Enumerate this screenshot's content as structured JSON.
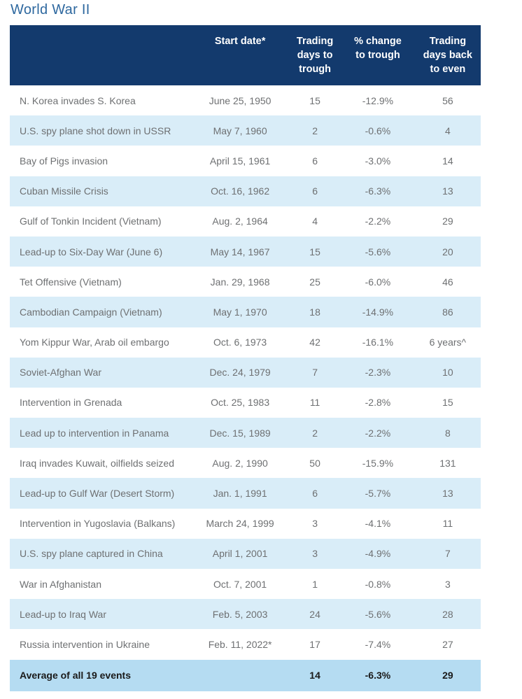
{
  "page_title": "World War II",
  "colors": {
    "title": "#2E689F",
    "header_bg": "#133A6D",
    "header_text": "#FFFFFF",
    "row_stripe": "#D9EDF8",
    "body_text": "#6E7072",
    "average_row_bg": "#B5DCF2",
    "average_text": "#1A1A1A"
  },
  "table": {
    "columns": [
      {
        "label": ""
      },
      {
        "label": "Start date*"
      },
      {
        "label": "Trading days to trough"
      },
      {
        "label": "% change to trough"
      },
      {
        "label": "Trading days back to even"
      }
    ],
    "rows": [
      [
        "N. Korea invades S. Korea",
        "June 25, 1950",
        "15",
        "-12.9%",
        "56"
      ],
      [
        "U.S. spy plane shot down in USSR",
        "May 7, 1960",
        "2",
        "-0.6%",
        "4"
      ],
      [
        "Bay of Pigs invasion",
        "April 15, 1961",
        "6",
        "-3.0%",
        "14"
      ],
      [
        "Cuban Missile Crisis",
        "Oct. 16, 1962",
        "6",
        "-6.3%",
        "13"
      ],
      [
        "Gulf of Tonkin Incident (Vietnam)",
        "Aug. 2, 1964",
        "4",
        "-2.2%",
        "29"
      ],
      [
        "Lead-up to Six-Day War (June 6)",
        "May 14, 1967",
        "15",
        "-5.6%",
        "20"
      ],
      [
        "Tet Offensive (Vietnam)",
        "Jan. 29, 1968",
        "25",
        "-6.0%",
        "46"
      ],
      [
        "Cambodian Campaign (Vietnam)",
        "May 1, 1970",
        "18",
        "-14.9%",
        "86"
      ],
      [
        "Yom Kippur War, Arab oil embargo",
        "Oct. 6, 1973",
        "42",
        "-16.1%",
        "6 years^"
      ],
      [
        "Soviet-Afghan War",
        "Dec. 24, 1979",
        "7",
        "-2.3%",
        "10"
      ],
      [
        "Intervention in Grenada",
        "Oct. 25, 1983",
        "11",
        "-2.8%",
        "15"
      ],
      [
        "Lead up to intervention in Panama",
        "Dec. 15, 1989",
        "2",
        "-2.2%",
        "8"
      ],
      [
        "Iraq invades Kuwait, oilfields seized",
        "Aug. 2, 1990",
        "50",
        "-15.9%",
        "131"
      ],
      [
        "Lead-up to Gulf War (Desert Storm)",
        "Jan. 1, 1991",
        "6",
        "-5.7%",
        "13"
      ],
      [
        "Intervention in Yugoslavia (Balkans)",
        "March 24, 1999",
        "3",
        "-4.1%",
        "11"
      ],
      [
        "U.S. spy plane captured in China",
        "April 1, 2001",
        "3",
        "-4.9%",
        "7"
      ],
      [
        "War in Afghanistan",
        "Oct. 7, 2001",
        "1",
        "-0.8%",
        "3"
      ],
      [
        "Lead-up to Iraq War",
        "Feb. 5, 2003",
        "24",
        "-5.6%",
        "28"
      ],
      [
        "Russia intervention in Ukraine",
        "Feb. 11, 2022*",
        "17",
        "-7.4%",
        "27"
      ]
    ],
    "footer": [
      "Average of all 19 events",
      "",
      "14",
      "-6.3%",
      "29"
    ]
  }
}
